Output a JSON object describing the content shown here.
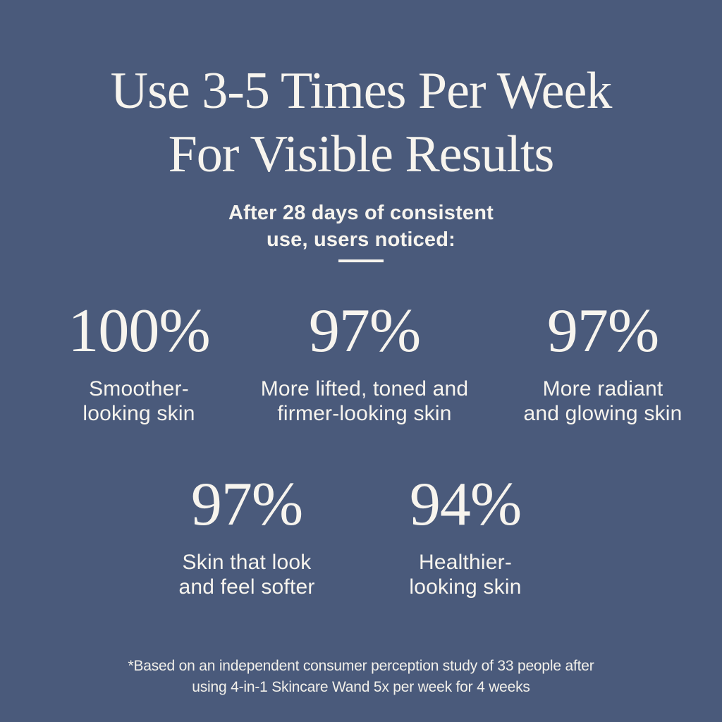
{
  "page": {
    "background_color": "#4A5A7B",
    "text_color": "#F7F4EE"
  },
  "header": {
    "title_line1": "Use 3-5 Times Per Week",
    "title_line2": "For Visible Results",
    "subtitle": "After 28 days of consistent\nuse, users noticed:"
  },
  "stats": [
    {
      "value": "100%",
      "label": "Smoother-\nlooking skin"
    },
    {
      "value": "97%",
      "label": "More lifted, toned and\nfirmer-looking skin"
    },
    {
      "value": "97%",
      "label": "More radiant\nand glowing skin"
    },
    {
      "value": "97%",
      "label": "Skin that look\nand feel softer"
    },
    {
      "value": "94%",
      "label": "Healthier-\nlooking skin"
    }
  ],
  "footnote": "*Based on an independent consumer perception study of 33 people after\nusing 4-in-1 Skincare Wand 5x per week for 4 weeks",
  "chart_data": {
    "type": "table",
    "title": "Use 3-5 Times Per Week For Visible Results",
    "subtitle": "After 28 days of consistent use, users noticed:",
    "categories": [
      "Smoother-looking skin",
      "More lifted, toned and firmer-looking skin",
      "More radiant and glowing skin",
      "Skin that look and feel softer",
      "Healthier-looking skin"
    ],
    "values": [
      100,
      97,
      97,
      97,
      94
    ],
    "unit": "%",
    "footnote": "*Based on an independent consumer perception study of 33 people after using 4-in-1 Skincare Wand 5x per week for 4 weeks"
  }
}
